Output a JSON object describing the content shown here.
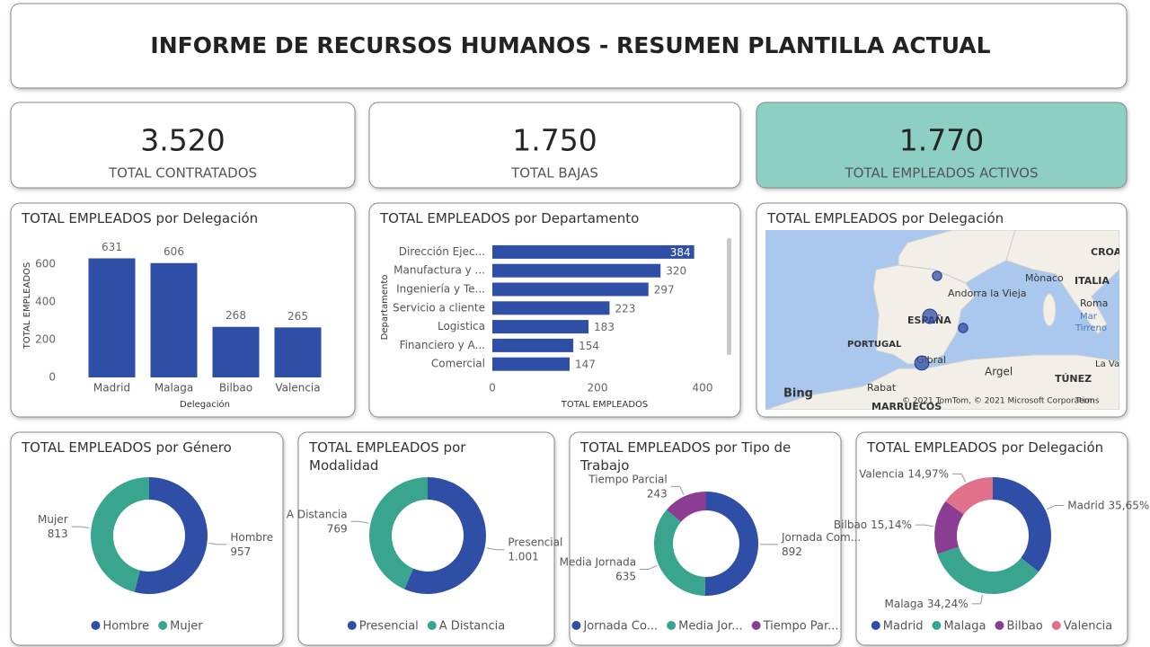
{
  "header": {
    "title": "INFORME DE RECURSOS HUMANOS - RESUMEN PLANTILLA ACTUAL"
  },
  "kpis": [
    {
      "value": "3.520",
      "label": "TOTAL CONTRATADOS"
    },
    {
      "value": "1.750",
      "label": "TOTAL BAJAS"
    },
    {
      "value": "1.770",
      "label": "TOTAL EMPLEADOS ACTIVOS"
    }
  ],
  "chart_data": [
    {
      "type": "bar",
      "title": "TOTAL EMPLEADOS por Delegación",
      "x_label": "Delegación",
      "y_label": "TOTAL EMPLEADOS",
      "categories": [
        "Madrid",
        "Malaga",
        "Bilbao",
        "Valencia"
      ],
      "values": [
        631,
        606,
        268,
        265
      ],
      "color": "#2f4fa6",
      "ylim": [
        0,
        700
      ],
      "yticks": [
        0,
        200,
        400,
        600
      ],
      "grid": false
    },
    {
      "type": "hbar",
      "title": "TOTAL EMPLEADOS por Departamento",
      "x_label": "TOTAL EMPLEADOS",
      "y_label": "Departamento",
      "categories": [
        "Dirección Ejec...",
        "Manufactura y ...",
        "Ingeniería y Te...",
        "Servicio a cliente",
        "Logistica",
        "Financiero y A...",
        "Comercial"
      ],
      "values": [
        384,
        320,
        297,
        223,
        183,
        154,
        147
      ],
      "color": "#2f4fa6",
      "xlim": [
        0,
        400
      ],
      "xticks": [
        0,
        200,
        400
      ],
      "grid": false
    },
    {
      "type": "map",
      "title": "TOTAL EMPLEADOS por Delegación",
      "categories": [
        "Madrid",
        "Malaga",
        "Bilbao",
        "Valencia"
      ],
      "values": [
        631,
        606,
        268,
        265
      ],
      "color": "#2f4fa6",
      "labels": [
        "CROAC",
        "ITALIA",
        "Mònaco",
        "Andorra la Vieja",
        "Roma",
        "Mar",
        "Tirreno",
        "ESPAÑA",
        "PORTUGAL",
        "Gibral",
        "Argel",
        "TÚNEZ",
        "La Va",
        "Rabat",
        "MARRUECOS",
        "Bing",
        "© 2021 TomTom, © 2021 Microsoft Corporation",
        "Terms"
      ]
    },
    {
      "type": "donut",
      "title": "TOTAL EMPLEADOS por Género",
      "categories": [
        "Hombre",
        "Mujer"
      ],
      "values": [
        957,
        813
      ],
      "colors": [
        "#2f4fa6",
        "#3aa58f"
      ]
    },
    {
      "type": "donut",
      "title": "TOTAL EMPLEADOS por Modalidad",
      "categories": [
        "Presencial",
        "A Distancia"
      ],
      "values": [
        1001,
        769
      ],
      "value_labels": [
        "1.001",
        "769"
      ],
      "colors": [
        "#2f4fa6",
        "#3aa58f"
      ]
    },
    {
      "type": "donut",
      "title": "TOTAL EMPLEADOS por Tipo de Trabajo",
      "categories": [
        "Jornada Com...",
        "Media Jornada",
        "Tiempo Parcial"
      ],
      "legend_labels": [
        "Jornada Co...",
        "Media Jor...",
        "Tiempo Par..."
      ],
      "values": [
        892,
        635,
        243
      ],
      "colors": [
        "#2f4fa6",
        "#3aa58f",
        "#8b3d93"
      ]
    },
    {
      "type": "donut",
      "title": "TOTAL EMPLEADOS por Delegación",
      "categories": [
        "Madrid",
        "Malaga",
        "Bilbao",
        "Valencia"
      ],
      "values": [
        35.65,
        34.24,
        15.14,
        14.97
      ],
      "value_labels": [
        "35,65%",
        "34,24%",
        "15,14%",
        "14,97%"
      ],
      "colors": [
        "#2f4fa6",
        "#3aa58f",
        "#8b3d93",
        "#e1708a"
      ]
    }
  ]
}
